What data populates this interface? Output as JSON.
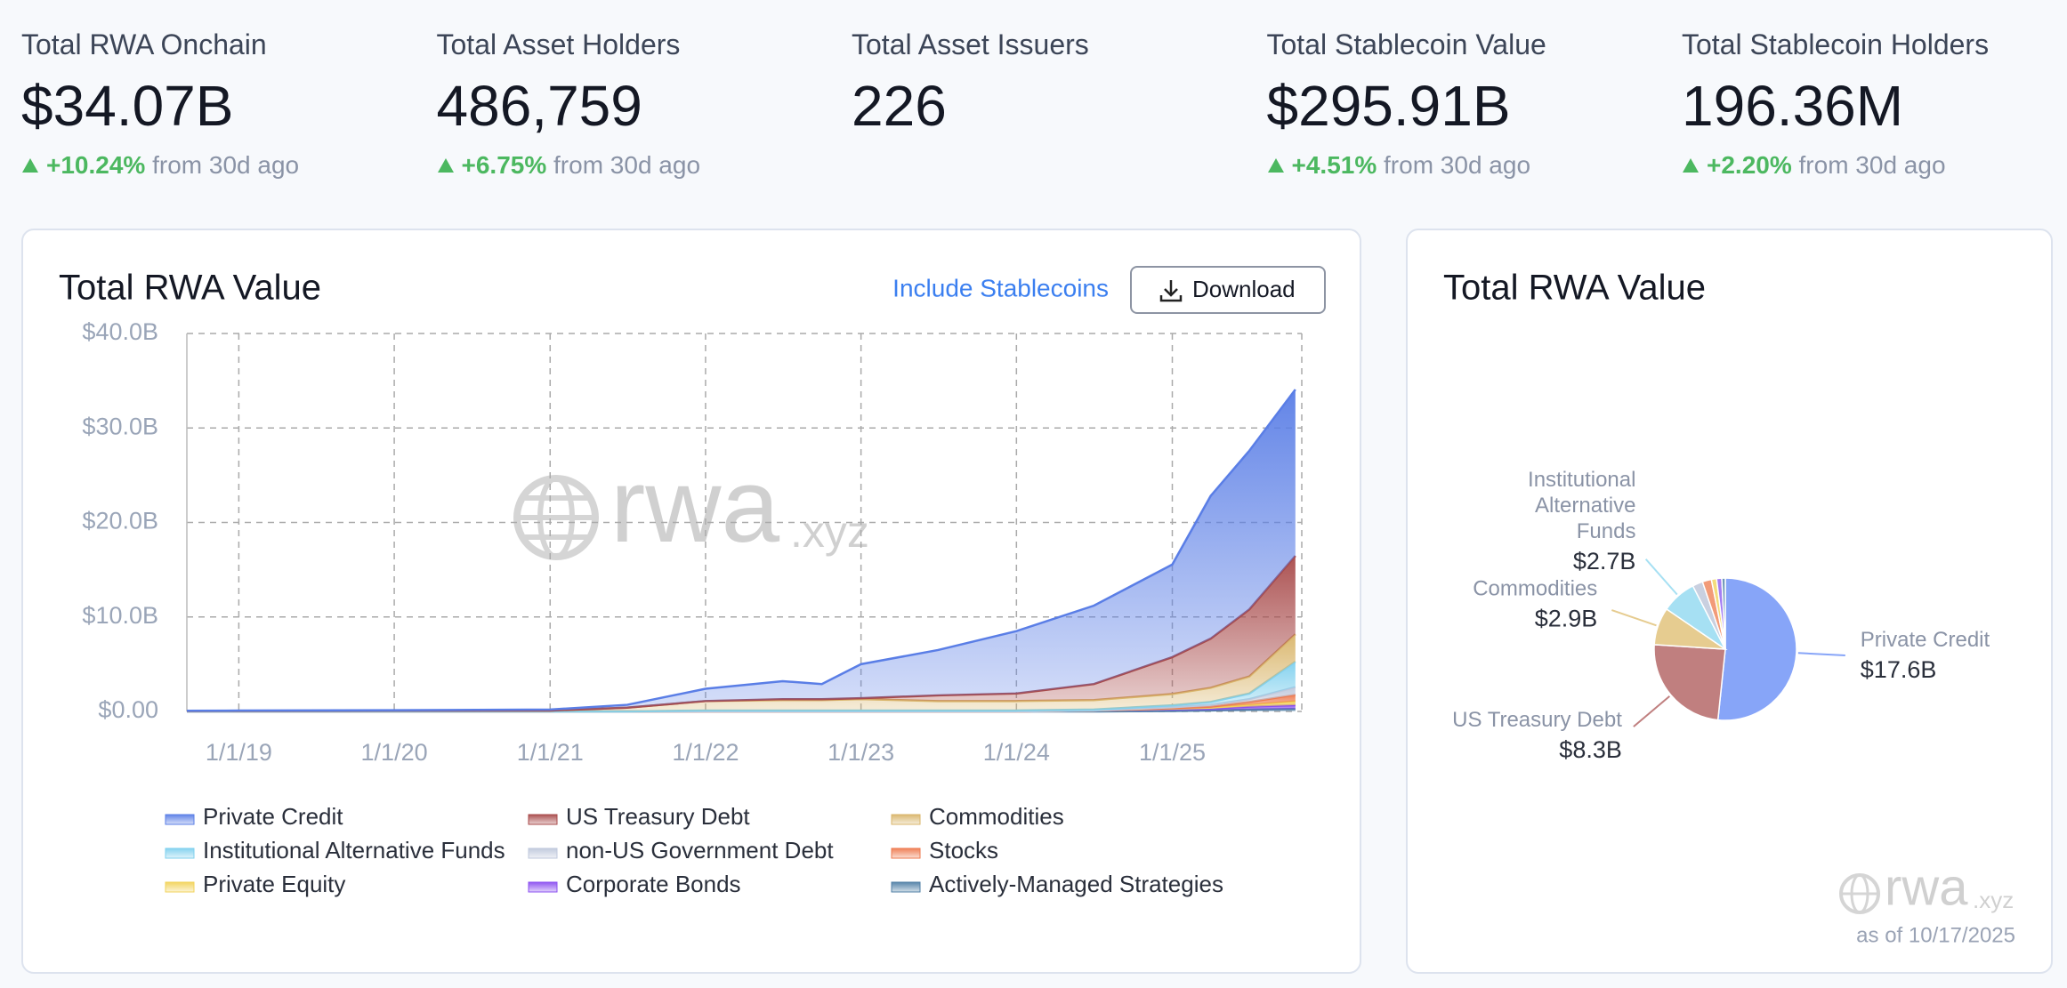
{
  "stats": [
    {
      "label": "Total RWA Onchain",
      "value": "$34.07B",
      "change": "+10.24%",
      "suffix": "from 30d ago"
    },
    {
      "label": "Total Asset Holders",
      "value": "486,759",
      "change": "+6.75%",
      "suffix": "from 30d ago"
    },
    {
      "label": "Total Asset Issuers",
      "value": "226"
    },
    {
      "label": "Total Stablecoin Value",
      "value": "$295.91B",
      "change": "+4.51%",
      "suffix": "from 30d ago"
    },
    {
      "label": "Total Stablecoin Holders",
      "value": "196.36M",
      "change": "+2.20%",
      "suffix": "from 30d ago"
    }
  ],
  "include_stablecoins": "Include Stablecoins",
  "download": "Download",
  "watermark": {
    "brand": "rwa",
    "domain": ".xyz"
  },
  "as_of": "as of 10/17/2025",
  "chart_data": [
    {
      "type": "area",
      "title": "Total RWA Value",
      "stacked": true,
      "grid": true,
      "x": [
        "9/1/18",
        "1/1/19",
        "1/1/20",
        "1/1/21",
        "7/1/21",
        "1/1/22",
        "7/1/22",
        "10/1/22",
        "1/1/23",
        "7/1/23",
        "1/1/24",
        "7/1/24",
        "1/1/25",
        "4/1/25",
        "7/1/25",
        "10/17/25"
      ],
      "xlim": [
        "9/1/18",
        "11/1/25"
      ],
      "xticks": [
        "1/1/19",
        "1/1/20",
        "1/1/21",
        "1/1/22",
        "1/1/23",
        "1/1/24",
        "1/1/25"
      ],
      "ylim": [
        0,
        40
      ],
      "yticks": [
        {
          "value": 0,
          "label": "$0.00"
        },
        {
          "value": 10,
          "label": "$10.0B"
        },
        {
          "value": 20,
          "label": "$20.0B"
        },
        {
          "value": 30,
          "label": "$30.0B"
        },
        {
          "value": 40,
          "label": "$40.0B"
        }
      ],
      "series": [
        {
          "name": "Private Credit",
          "color": "#5a7ee6",
          "values": [
            0.02,
            0.03,
            0.05,
            0.1,
            0.3,
            1.3,
            1.9,
            1.6,
            3.6,
            4.8,
            6.6,
            8.3,
            9.8,
            15.1,
            16.8,
            17.6
          ]
        },
        {
          "name": "US Treasury Debt",
          "color": "#a84a4a",
          "values": [
            0,
            0,
            0,
            0,
            0,
            0,
            0.1,
            0.1,
            0.1,
            0.6,
            0.8,
            1.7,
            3.9,
            5.2,
            7.1,
            8.3
          ]
        },
        {
          "name": "Commodities",
          "color": "#d9b56a",
          "values": [
            0.05,
            0.06,
            0.08,
            0.1,
            0.4,
            1.0,
            1.1,
            1.1,
            1.2,
            1.0,
            1.0,
            1.0,
            1.2,
            1.5,
            1.8,
            2.9
          ]
        },
        {
          "name": "Institutional Alternative Funds",
          "color": "#7fd0ee",
          "values": [
            0,
            0,
            0,
            0,
            0,
            0.1,
            0.1,
            0.1,
            0.1,
            0.1,
            0.1,
            0.1,
            0.2,
            0.3,
            0.6,
            2.7
          ]
        },
        {
          "name": "non-US Government Debt",
          "color": "#bfc8dc",
          "values": [
            0,
            0,
            0,
            0,
            0,
            0,
            0,
            0,
            0,
            0,
            0,
            0,
            0.1,
            0.2,
            0.3,
            0.8
          ]
        },
        {
          "name": "Stocks",
          "color": "#ee7a4f",
          "values": [
            0,
            0,
            0,
            0,
            0,
            0,
            0,
            0,
            0,
            0,
            0,
            0,
            0.05,
            0.1,
            0.3,
            0.7
          ]
        },
        {
          "name": "Private Equity",
          "color": "#f2d35a",
          "values": [
            0,
            0,
            0,
            0,
            0,
            0,
            0,
            0,
            0,
            0,
            0,
            0,
            0.05,
            0.1,
            0.2,
            0.4
          ]
        },
        {
          "name": "Corporate Bonds",
          "color": "#8b4ff0",
          "values": [
            0,
            0,
            0,
            0,
            0,
            0,
            0,
            0,
            0,
            0,
            0,
            0.1,
            0.2,
            0.2,
            0.3,
            0.4
          ]
        },
        {
          "name": "Actively-Managed Strategies",
          "color": "#4f7fa6",
          "values": [
            0,
            0,
            0,
            0,
            0,
            0,
            0,
            0,
            0,
            0,
            0,
            0,
            0.05,
            0.1,
            0.2,
            0.27
          ]
        }
      ]
    },
    {
      "type": "pie",
      "title": "Total RWA Value",
      "categories": [
        "Private Credit",
        "US Treasury Debt",
        "Commodities",
        "Institutional Alternative Funds",
        null,
        null,
        null,
        null,
        null
      ],
      "values": [
        17.6,
        8.3,
        2.9,
        2.7,
        0.8,
        0.7,
        0.4,
        0.4,
        0.27
      ],
      "value_labels": [
        "$17.6B",
        "$8.3B",
        "$2.9B",
        "$2.7B",
        null,
        null,
        null,
        null,
        null
      ],
      "colors": [
        "#87a5f8",
        "#c07f7f",
        "#e6cc90",
        "#a6e0f3",
        "#c9d0e0",
        "#f29b78",
        "#f4dc7c",
        "#a47ef2",
        "#6f98ba"
      ]
    }
  ]
}
